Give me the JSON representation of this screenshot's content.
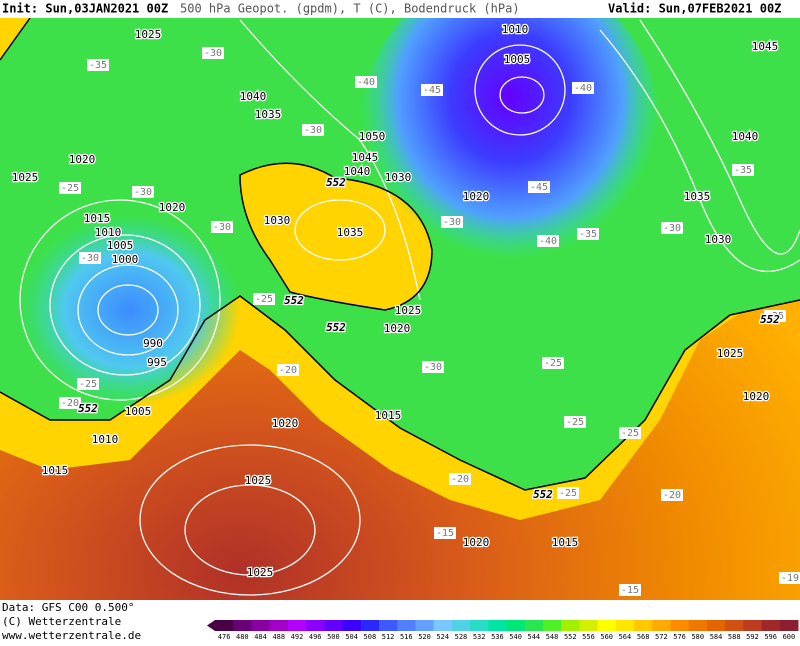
{
  "header": {
    "init": "Init: Sun,03JAN2021 00Z",
    "title": "500 hPa Geopot. (gpdm), T (C), Bodendruck (hPa)",
    "valid": "Valid: Sun,07FEB2021 00Z"
  },
  "footer": {
    "data": "Data: GFS C00 0.500°",
    "copyright": "(C) Wetterzentrale",
    "url": "www.wetterzentrale.de"
  },
  "colorbar": {
    "labels": [
      "476",
      "480",
      "484",
      "488",
      "492",
      "496",
      "500",
      "504",
      "508",
      "512",
      "516",
      "520",
      "524",
      "528",
      "532",
      "536",
      "540",
      "544",
      "548",
      "552",
      "556",
      "560",
      "564",
      "568",
      "572",
      "576",
      "580",
      "584",
      "588",
      "592",
      "596",
      "600"
    ],
    "colors": [
      "#4b0046",
      "#6a0078",
      "#8a00a0",
      "#a000c8",
      "#b400ff",
      "#8c00ff",
      "#6400ff",
      "#3c00ff",
      "#2828ff",
      "#3c5aff",
      "#5080ff",
      "#64a0ff",
      "#78c8ff",
      "#50d2e6",
      "#28dcc8",
      "#00e6a0",
      "#00e678",
      "#28e650",
      "#50f028",
      "#a0f000",
      "#d2f000",
      "#ffff00",
      "#ffe600",
      "#ffc800",
      "#ffaa00",
      "#ff8c00",
      "#f07800",
      "#e66400",
      "#d25014",
      "#be3c1e",
      "#a02828",
      "#8c1e32"
    ]
  },
  "isobar_labels": [
    "1025",
    "1010",
    "1005",
    "1045",
    "1040",
    "1035",
    "1050",
    "1040",
    "1020",
    "1045",
    "1040",
    "1030",
    "1025",
    "1035",
    "1020",
    "1020",
    "1015",
    "1030",
    "1035",
    "1010",
    "1030",
    "1005",
    "1000",
    "1025",
    "1020",
    "990",
    "995",
    "1025",
    "1005",
    "1010",
    "1020",
    "1015",
    "1020",
    "1015",
    "1025",
    "1020",
    "1015",
    "1025"
  ],
  "temperature_labels": [
    "-35",
    "-30",
    "-40",
    "-45",
    "-40",
    "-30",
    "-35",
    "-25",
    "-30",
    "-45",
    "-30",
    "-30",
    "-35",
    "-40",
    "-30",
    "-30",
    "-25",
    "-25",
    "-30",
    "-20",
    "-25",
    "-20",
    "-25",
    "-25",
    "-20",
    "-20",
    "-25",
    "-15",
    "-15",
    "-19",
    "-25"
  ],
  "contour_labels": [
    "552",
    "552",
    "552",
    "552",
    "552",
    "552"
  ]
}
